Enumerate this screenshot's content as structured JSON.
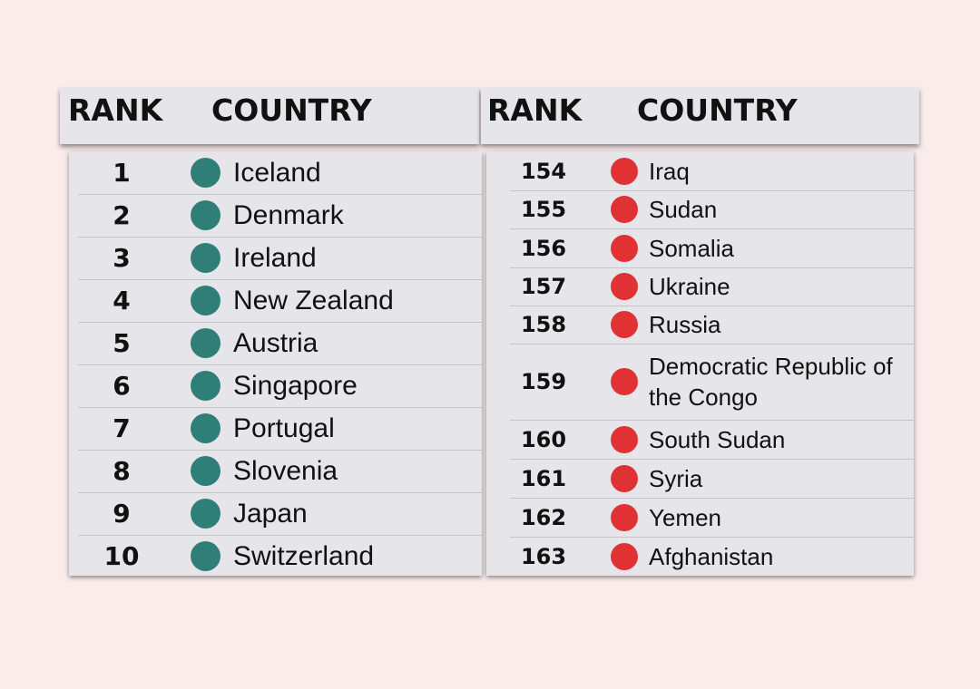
{
  "headers": {
    "left": {
      "rank": "RANK",
      "country": "COUNTRY"
    },
    "right": {
      "rank": "RANK",
      "country": "COUNTRY"
    }
  },
  "colors": {
    "top_dot": "#2f7f78",
    "bottom_dot": "#e03234",
    "background": "#fbecec",
    "panel": "#e6e6ea"
  },
  "top_ranked": [
    {
      "rank": "1",
      "country": "Iceland"
    },
    {
      "rank": "2",
      "country": "Denmark"
    },
    {
      "rank": "3",
      "country": "Ireland"
    },
    {
      "rank": "4",
      "country": "New Zealand"
    },
    {
      "rank": "5",
      "country": "Austria"
    },
    {
      "rank": "6",
      "country": "Singapore"
    },
    {
      "rank": "7",
      "country": "Portugal"
    },
    {
      "rank": "8",
      "country": "Slovenia"
    },
    {
      "rank": "9",
      "country": "Japan"
    },
    {
      "rank": "10",
      "country": "Switzerland"
    }
  ],
  "bottom_ranked": [
    {
      "rank": "154",
      "country": "Iraq"
    },
    {
      "rank": "155",
      "country": "Sudan"
    },
    {
      "rank": "156",
      "country": "Somalia"
    },
    {
      "rank": "157",
      "country": "Ukraine"
    },
    {
      "rank": "158",
      "country": "Russia"
    },
    {
      "rank": "159",
      "country": "Democratic Republic of the Congo"
    },
    {
      "rank": "160",
      "country": "South Sudan"
    },
    {
      "rank": "161",
      "country": "Syria"
    },
    {
      "rank": "162",
      "country": "Yemen"
    },
    {
      "rank": "163",
      "country": "Afghanistan"
    }
  ]
}
